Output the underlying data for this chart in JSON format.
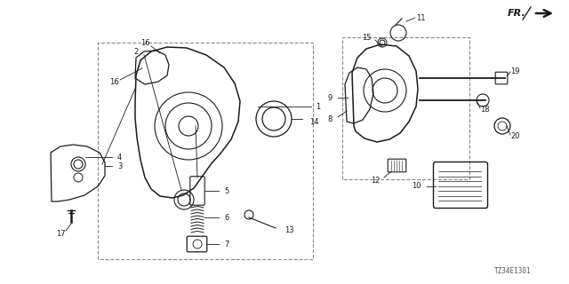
{
  "bg_color": "#ffffff",
  "diagram_code": "TZ34E1301",
  "fr_label": "FR.",
  "line_color": "#1a1a1a",
  "dash_color": "#888888",
  "label_font_size": 6.0
}
